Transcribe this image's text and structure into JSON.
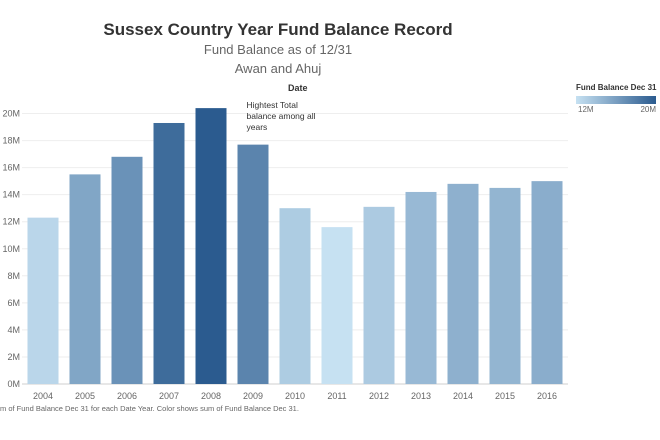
{
  "header": {
    "title": "Sussex Country Year Fund Balance Record",
    "subtitle": "Fund Balance as of 12/31",
    "authors": "Awan and Ahuj",
    "column_header": "Date"
  },
  "legend": {
    "title": "Fund Balance Dec 31",
    "min_label": "12M",
    "max_label": "20M",
    "color_low": "#c6e1f2",
    "color_high": "#2b5b8f"
  },
  "footnote": "m of Fund Balance Dec 31 for each Date Year.  Color shows sum of Fund Balance Dec 31.",
  "chart_data": {
    "type": "bar",
    "title": "Sussex Country Year Fund Balance Record",
    "subtitle": "Fund Balance as of 12/31",
    "xlabel": "Date",
    "ylabel": "",
    "categories": [
      "2004",
      "2005",
      "2006",
      "2007",
      "2008",
      "2009",
      "2010",
      "2011",
      "2012",
      "2013",
      "2014",
      "2015",
      "2016"
    ],
    "values": [
      12.3,
      15.5,
      16.8,
      19.3,
      20.4,
      17.7,
      13.0,
      11.6,
      13.1,
      14.2,
      14.8,
      14.5,
      15.0
    ],
    "unit": "M",
    "ylim": [
      0,
      21
    ],
    "yticks": [
      "0M",
      "2M",
      "4M",
      "6M",
      "8M",
      "10M",
      "12M",
      "14M",
      "16M",
      "18M",
      "20M"
    ],
    "grid": true,
    "legend_position": "top-right",
    "annotation": {
      "category": "2008",
      "lines": [
        "Hightest Total",
        "balance among all",
        "years"
      ]
    }
  }
}
